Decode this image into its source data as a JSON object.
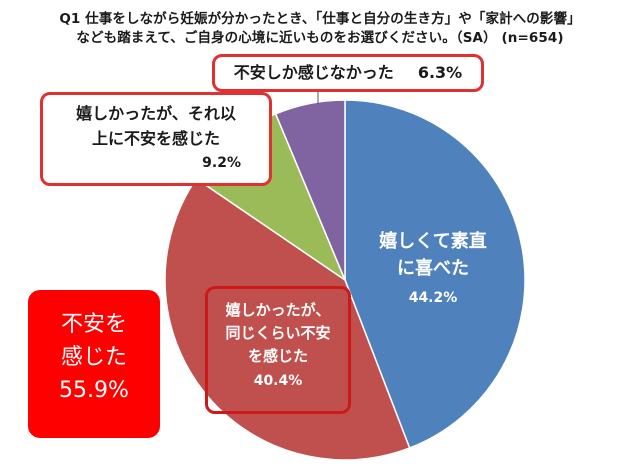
{
  "title": {
    "line1": "Q1  仕事をしながら妊娠が分かったとき、「仕事と自分の生き方」や「家計への影響」",
    "line2": "なども踏まえて、ご自身の心境に近いものをお選びください。（SA） (n=654)"
  },
  "chart_data": {
    "type": "pie",
    "start": "12 o'clock",
    "direction": "clockwise",
    "slices": [
      {
        "label": "嬉しくて素直に喜べた",
        "value": 44.2,
        "color": "#4f81bd"
      },
      {
        "label": "嬉しかったが、同じくらい不安を感じた",
        "value": 40.4,
        "color": "#c0504d"
      },
      {
        "label": "嬉しかったが、それ以上に不安を感じた",
        "value": 9.2,
        "color": "#9bbb59"
      },
      {
        "label": "不安しか感じなかった",
        "value": 6.3,
        "color": "#8064a2"
      }
    ]
  },
  "labels": {
    "happy_line1": "嬉しくて素直",
    "happy_line2": "に喜べた",
    "happy_pct": "44.2%",
    "same_anxious_line1": "嬉しかったが、",
    "same_anxious_line2": "同じくらい不安",
    "same_anxious_line3": "を感じた",
    "same_anxious_pct": "40.4%",
    "more_anxious_line1": "嬉しかったが、それ以",
    "more_anxious_line2": "上に不安を感じた",
    "more_anxious_pct": "9.2%",
    "anxious_only_text": "不安しか感じなかった",
    "anxious_only_pct": "6.3%"
  },
  "summary": {
    "line1": "不安を",
    "line2": "感じた",
    "pct": "55.9%",
    "color": "#ff0000"
  },
  "colors": {
    "callout_border": "#e03030"
  }
}
